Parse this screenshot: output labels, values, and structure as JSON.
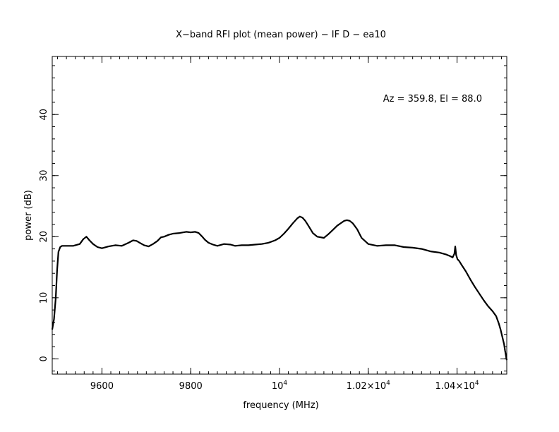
{
  "chart_data": {
    "type": "line",
    "title": "X−band RFI plot (mean power) − IF D − ea10",
    "xlabel": "frequency (MHz)",
    "ylabel": "power (dB)",
    "annotation": "Az = 359.8, El = 88.0",
    "xlim": [
      9488,
      10512
    ],
    "ylim": [
      -2.5,
      49.5
    ],
    "x_ticks": [
      {
        "value": 9600,
        "base": "9600",
        "sup": ""
      },
      {
        "value": 9800,
        "base": "9800",
        "sup": ""
      },
      {
        "value": 10000,
        "base": "10",
        "sup": "4"
      },
      {
        "value": 10200,
        "base": "1.02×10",
        "sup": "4"
      },
      {
        "value": 10400,
        "base": "1.04×10",
        "sup": "4"
      }
    ],
    "y_ticks": [
      {
        "value": 0,
        "label": "0"
      },
      {
        "value": 10,
        "label": "10"
      },
      {
        "value": 20,
        "label": "20"
      },
      {
        "value": 30,
        "label": "30"
      },
      {
        "value": 40,
        "label": "40"
      }
    ],
    "grid": false,
    "series": [
      {
        "line_color": "#000000",
        "x": [
          9488,
          9492,
          9496,
          9499,
          9502,
          9506,
          9510,
          9520,
          9535,
          9550,
          9558,
          9565,
          9572,
          9580,
          9590,
          9600,
          9615,
          9630,
          9645,
          9660,
          9670,
          9678,
          9685,
          9695,
          9705,
          9715,
          9725,
          9733,
          9740,
          9750,
          9760,
          9775,
          9790,
          9800,
          9810,
          9818,
          9826,
          9832,
          9840,
          9850,
          9860,
          9875,
          9890,
          9900,
          9915,
          9930,
          9945,
          9960,
          9975,
          9990,
          10000,
          10010,
          10020,
          10030,
          10040,
          10046,
          10052,
          10058,
          10065,
          10075,
          10085,
          10100,
          10110,
          10120,
          10130,
          10140,
          10146,
          10152,
          10158,
          10165,
          10175,
          10185,
          10200,
          10220,
          10240,
          10260,
          10280,
          10300,
          10320,
          10340,
          10360,
          10375,
          10385,
          10390,
          10394,
          10396,
          10398,
          10401,
          10405,
          10410,
          10420,
          10430,
          10440,
          10450,
          10460,
          10470,
          10480,
          10488,
          10494,
          10498,
          10502,
          10506,
          10508,
          10510,
          10511,
          10512
        ],
        "y": [
          4.8,
          6.5,
          10.0,
          14.5,
          17.5,
          18.3,
          18.5,
          18.5,
          18.5,
          18.8,
          19.6,
          20.0,
          19.4,
          18.8,
          18.3,
          18.1,
          18.4,
          18.6,
          18.5,
          19.0,
          19.4,
          19.3,
          19.0,
          18.6,
          18.4,
          18.8,
          19.3,
          19.9,
          20.0,
          20.3,
          20.5,
          20.6,
          20.8,
          20.7,
          20.8,
          20.6,
          20.0,
          19.5,
          19.0,
          18.7,
          18.5,
          18.8,
          18.7,
          18.5,
          18.6,
          18.6,
          18.7,
          18.8,
          19.0,
          19.4,
          19.8,
          20.5,
          21.3,
          22.2,
          23.0,
          23.3,
          23.1,
          22.6,
          21.8,
          20.6,
          20.0,
          19.8,
          20.4,
          21.1,
          21.8,
          22.3,
          22.6,
          22.7,
          22.6,
          22.2,
          21.2,
          19.8,
          18.8,
          18.5,
          18.6,
          18.6,
          18.3,
          18.2,
          18.0,
          17.6,
          17.4,
          17.1,
          16.8,
          16.6,
          17.2,
          18.4,
          17.0,
          16.3,
          16.0,
          15.4,
          14.3,
          13.0,
          11.8,
          10.7,
          9.6,
          8.6,
          7.8,
          7.0,
          5.8,
          4.8,
          3.6,
          2.4,
          1.4,
          0.6,
          0.1,
          -0.2
        ]
      }
    ]
  }
}
